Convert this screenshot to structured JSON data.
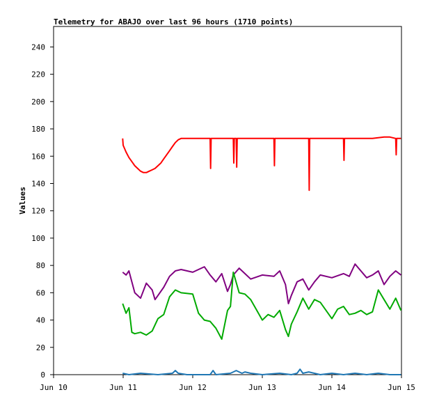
{
  "chart_data": {
    "type": "line",
    "title": "Telemetry for ABAJO over last 96 hours (1710 points)",
    "xlabel": "",
    "ylabel": "Values",
    "x_range": [
      "2019-06-10T00:00",
      "2019-06-15T00:00"
    ],
    "ylim": [
      0,
      255
    ],
    "y_ticks": [
      0,
      20,
      40,
      60,
      80,
      100,
      120,
      140,
      160,
      180,
      200,
      220,
      240
    ],
    "x_ticks": [
      {
        "value": "2019-06-10T00:00",
        "label": "Jun 10"
      },
      {
        "value": "2019-06-11T00:00",
        "label": "Jun 11"
      },
      {
        "value": "2019-06-12T00:00",
        "label": "Jun 12"
      },
      {
        "value": "2019-06-13T00:00",
        "label": "Jun 13"
      },
      {
        "value": "2019-06-14T00:00",
        "label": "Jun 14"
      },
      {
        "value": "2019-06-15T00:00",
        "label": "Jun 15"
      }
    ],
    "grid": false,
    "legend": "none",
    "series": [
      {
        "color": "#ff0000",
        "x": [
          "2019-06-10T23:50",
          "2019-06-11T00:00",
          "2019-06-11T01:00",
          "2019-06-11T02:00",
          "2019-06-11T03:00",
          "2019-06-11T04:00",
          "2019-06-11T05:00",
          "2019-06-11T06:00",
          "2019-06-11T07:00",
          "2019-06-11T08:00",
          "2019-06-11T09:00",
          "2019-06-11T10:00",
          "2019-06-11T11:00",
          "2019-06-11T12:00",
          "2019-06-11T13:00",
          "2019-06-11T14:00",
          "2019-06-11T15:00",
          "2019-06-11T16:00",
          "2019-06-11T17:00",
          "2019-06-11T18:00",
          "2019-06-11T19:00",
          "2019-06-11T20:00",
          "2019-06-12T00:00",
          "2019-06-12T04:00",
          "2019-06-12T06:00",
          "2019-06-12T06:10",
          "2019-06-12T06:20",
          "2019-06-12T08:00",
          "2019-06-12T12:00",
          "2019-06-12T14:00",
          "2019-06-12T14:10",
          "2019-06-12T14:20",
          "2019-06-12T15:00",
          "2019-06-12T15:10",
          "2019-06-12T15:20",
          "2019-06-12T18:00",
          "2019-06-13T00:00",
          "2019-06-13T04:00",
          "2019-06-13T04:10",
          "2019-06-13T04:20",
          "2019-06-13T10:00",
          "2019-06-13T12:00",
          "2019-06-13T14:00",
          "2019-06-13T16:00",
          "2019-06-13T16:10",
          "2019-06-13T16:20",
          "2019-06-13T20:00",
          "2019-06-14T00:00",
          "2019-06-14T04:00",
          "2019-06-14T04:10",
          "2019-06-14T04:20",
          "2019-06-14T08:00",
          "2019-06-14T14:00",
          "2019-06-14T18:00",
          "2019-06-14T20:00",
          "2019-06-14T22:00",
          "2019-06-14T22:10",
          "2019-06-14T22:20",
          "2019-06-14T23:50"
        ],
        "y": [
          173,
          168,
          163,
          159,
          156,
          153,
          151,
          149,
          148,
          148,
          149,
          150,
          151,
          153,
          155,
          158,
          161,
          164,
          167,
          170,
          172,
          173,
          173,
          173,
          173,
          151,
          173,
          173,
          173,
          173,
          155,
          173,
          173,
          152,
          173,
          173,
          173,
          173,
          153,
          173,
          173,
          173,
          173,
          173,
          135,
          173,
          173,
          173,
          173,
          157,
          173,
          173,
          173,
          174,
          174,
          173,
          161,
          173,
          173
        ]
      },
      {
        "color": "#800080",
        "x": [
          "2019-06-10T23:50",
          "2019-06-11T01:00",
          "2019-06-11T02:00",
          "2019-06-11T03:00",
          "2019-06-11T04:00",
          "2019-06-11T06:00",
          "2019-06-11T08:00",
          "2019-06-11T10:00",
          "2019-06-11T11:00",
          "2019-06-11T12:00",
          "2019-06-11T14:00",
          "2019-06-11T16:00",
          "2019-06-11T18:00",
          "2019-06-11T20:00",
          "2019-06-12T00:00",
          "2019-06-12T02:00",
          "2019-06-12T04:00",
          "2019-06-12T06:00",
          "2019-06-12T08:00",
          "2019-06-12T10:00",
          "2019-06-12T12:00",
          "2019-06-12T13:00",
          "2019-06-12T14:00",
          "2019-06-12T16:00",
          "2019-06-12T18:00",
          "2019-06-12T20:00",
          "2019-06-13T00:00",
          "2019-06-13T04:00",
          "2019-06-13T06:00",
          "2019-06-13T08:00",
          "2019-06-13T09:00",
          "2019-06-13T10:00",
          "2019-06-13T12:00",
          "2019-06-13T14:00",
          "2019-06-13T16:00",
          "2019-06-13T18:00",
          "2019-06-13T20:00",
          "2019-06-14T00:00",
          "2019-06-14T04:00",
          "2019-06-14T06:00",
          "2019-06-14T08:00",
          "2019-06-14T12:00",
          "2019-06-14T14:00",
          "2019-06-14T16:00",
          "2019-06-14T18:00",
          "2019-06-14T20:00",
          "2019-06-14T22:00",
          "2019-06-14T23:50"
        ],
        "y": [
          75,
          73,
          76,
          68,
          60,
          56,
          67,
          62,
          55,
          58,
          64,
          72,
          76,
          77,
          75,
          77,
          79,
          73,
          68,
          74,
          61,
          66,
          73,
          78,
          74,
          70,
          73,
          72,
          76,
          66,
          52,
          58,
          68,
          70,
          62,
          68,
          73,
          71,
          74,
          72,
          81,
          71,
          73,
          76,
          66,
          72,
          76,
          73
        ]
      },
      {
        "color": "#00aa00",
        "x": [
          "2019-06-10T23:50",
          "2019-06-11T01:00",
          "2019-06-11T02:00",
          "2019-06-11T03:00",
          "2019-06-11T04:00",
          "2019-06-11T06:00",
          "2019-06-11T08:00",
          "2019-06-11T10:00",
          "2019-06-11T12:00",
          "2019-06-11T14:00",
          "2019-06-11T16:00",
          "2019-06-11T18:00",
          "2019-06-11T20:00",
          "2019-06-12T00:00",
          "2019-06-12T02:00",
          "2019-06-12T04:00",
          "2019-06-12T06:00",
          "2019-06-12T08:00",
          "2019-06-12T10:00",
          "2019-06-12T12:00",
          "2019-06-12T13:00",
          "2019-06-12T14:00",
          "2019-06-12T16:00",
          "2019-06-12T18:00",
          "2019-06-12T20:00",
          "2019-06-13T00:00",
          "2019-06-13T02:00",
          "2019-06-13T04:00",
          "2019-06-13T06:00",
          "2019-06-13T08:00",
          "2019-06-13T09:00",
          "2019-06-13T10:00",
          "2019-06-13T12:00",
          "2019-06-13T14:00",
          "2019-06-13T16:00",
          "2019-06-13T18:00",
          "2019-06-13T20:00",
          "2019-06-14T00:00",
          "2019-06-14T02:00",
          "2019-06-14T04:00",
          "2019-06-14T06:00",
          "2019-06-14T08:00",
          "2019-06-14T10:00",
          "2019-06-14T12:00",
          "2019-06-14T14:00",
          "2019-06-14T16:00",
          "2019-06-14T18:00",
          "2019-06-14T20:00",
          "2019-06-14T22:00",
          "2019-06-14T23:50"
        ],
        "y": [
          52,
          45,
          49,
          31,
          30,
          31,
          29,
          32,
          41,
          44,
          57,
          62,
          60,
          59,
          45,
          40,
          39,
          34,
          26,
          47,
          50,
          75,
          60,
          59,
          55,
          40,
          44,
          42,
          47,
          33,
          28,
          37,
          46,
          56,
          48,
          55,
          53,
          41,
          48,
          50,
          44,
          45,
          47,
          44,
          46,
          62,
          55,
          48,
          56,
          47
        ]
      },
      {
        "color": "#1f77b4",
        "x": [
          "2019-06-10T23:50",
          "2019-06-11T02:00",
          "2019-06-11T06:00",
          "2019-06-11T12:00",
          "2019-06-11T17:00",
          "2019-06-11T18:00",
          "2019-06-11T19:00",
          "2019-06-11T22:00",
          "2019-06-12T06:00",
          "2019-06-12T07:00",
          "2019-06-12T08:00",
          "2019-06-12T13:00",
          "2019-06-12T14:00",
          "2019-06-12T15:00",
          "2019-06-12T16:00",
          "2019-06-12T17:00",
          "2019-06-12T18:00",
          "2019-06-12T20:00",
          "2019-06-13T00:00",
          "2019-06-13T06:00",
          "2019-06-13T10:00",
          "2019-06-13T12:00",
          "2019-06-13T13:00",
          "2019-06-13T14:00",
          "2019-06-13T16:00",
          "2019-06-13T20:00",
          "2019-06-14T00:00",
          "2019-06-14T04:00",
          "2019-06-14T08:00",
          "2019-06-14T12:00",
          "2019-06-14T16:00",
          "2019-06-14T20:00",
          "2019-06-14T23:50"
        ],
        "y": [
          1,
          0,
          1,
          0,
          1,
          3,
          1,
          0,
          0,
          3,
          0,
          1,
          2,
          3,
          2,
          1,
          2,
          1,
          0,
          1,
          0,
          1,
          4,
          1,
          2,
          0,
          1,
          0,
          1,
          0,
          1,
          0,
          0
        ]
      }
    ]
  }
}
